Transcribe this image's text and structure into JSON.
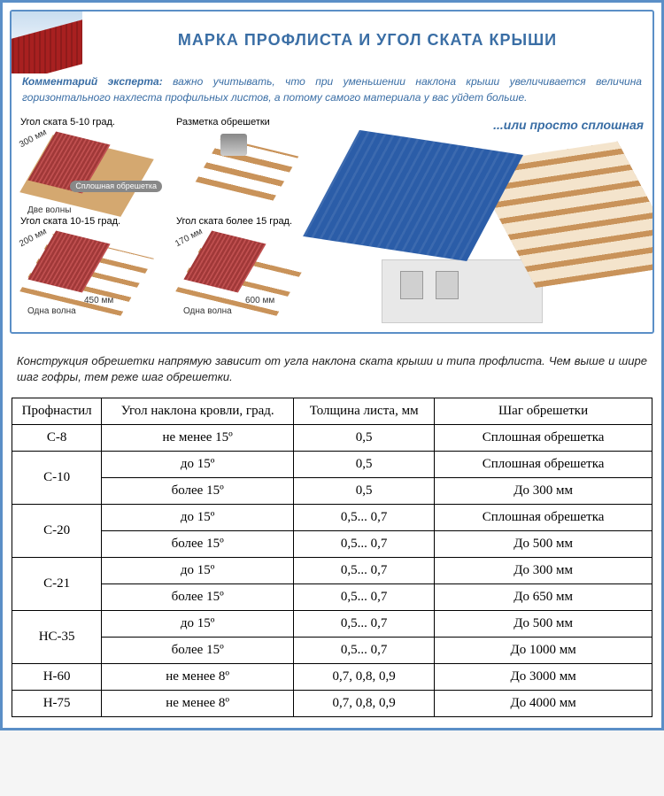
{
  "title": "МАРКА ПРОФЛИСТА И УГОЛ СКАТА КРЫШИ",
  "comment_label": "Комментарий эксперта:",
  "comment_text": " важно учитывать, что при уменьшении наклона крыши увеличивается величина горизонтального нахлеста профильных листов, а потому самого материала у вас уйдет больше.",
  "right_title": "...или просто сплошная",
  "diag_labels": {
    "a1": "Угол ската 5-10 град.",
    "a2": "Угол ската 10-15 град.",
    "a3": "Угол ската более 15 град.",
    "mark": "Разметка обрешетки",
    "solid": "Сплошная обрешетка",
    "d300": "300 мм",
    "d200": "200 мм",
    "d170": "170 мм",
    "d450": "450 мм",
    "d600": "600 мм",
    "two": "Две волны",
    "one": "Одна волна",
    "one2": "Одна волна"
  },
  "description": "Конструкция обрешетки напрямую зависит от угла наклона ската крыши и типа профлиста. Чем выше и шире шаг гофры, тем реже шаг обрешетки.",
  "table": {
    "headers": [
      "Профнастил",
      "Угол наклона кровли, град.",
      "Толщина листа, мм",
      "Шаг обрешетки"
    ],
    "rows": [
      {
        "name": "С-8",
        "span": 1,
        "cells": [
          [
            "не менее 15º",
            "0,5",
            "Сплошная обрешетка"
          ]
        ]
      },
      {
        "name": "С-10",
        "span": 2,
        "cells": [
          [
            "до 15º",
            "0,5",
            "Сплошная обрешетка"
          ],
          [
            "более 15º",
            "0,5",
            "До 300 мм"
          ]
        ]
      },
      {
        "name": "С-20",
        "span": 2,
        "cells": [
          [
            "до 15º",
            "0,5... 0,7",
            "Сплошная обрешетка"
          ],
          [
            "более 15º",
            "0,5... 0,7",
            "До 500 мм"
          ]
        ]
      },
      {
        "name": "С-21",
        "span": 2,
        "cells": [
          [
            "до 15º",
            "0,5... 0,7",
            "До 300 мм"
          ],
          [
            "более 15º",
            "0,5... 0,7",
            "До 650 мм"
          ]
        ]
      },
      {
        "name": "НС-35",
        "span": 2,
        "cells": [
          [
            "до 15º",
            "0,5... 0,7",
            "До 500 мм"
          ],
          [
            "более 15º",
            "0,5... 0,7",
            "До 1000 мм"
          ]
        ]
      },
      {
        "name": "Н-60",
        "span": 1,
        "cells": [
          [
            "не менее 8º",
            "0,7, 0,8, 0,9",
            "До 3000 мм"
          ]
        ]
      },
      {
        "name": "Н-75",
        "span": 1,
        "cells": [
          [
            "не менее 8º",
            "0,7, 0,8, 0,9",
            "До 4000 мм"
          ]
        ]
      }
    ],
    "col_widths": [
      "14%",
      "30%",
      "22%",
      "34%"
    ]
  },
  "colors": {
    "border": "#5b8fc7",
    "title": "#3a6ea5",
    "roof_red": "#a82020",
    "roof_blue": "#2b5da8",
    "wood": "#c9935a"
  }
}
